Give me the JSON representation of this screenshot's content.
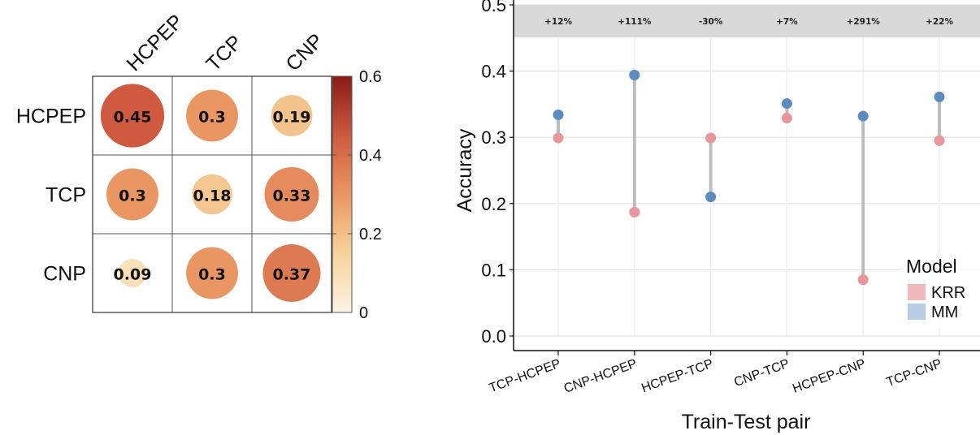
{
  "chart_data": [
    {
      "type": "heatmap",
      "rows": [
        "HCPEP",
        "TCP",
        "CNP"
      ],
      "columns": [
        "HCPEP",
        "TCP",
        "CNP"
      ],
      "values": [
        [
          0.45,
          0.3,
          0.19
        ],
        [
          0.3,
          0.18,
          0.33
        ],
        [
          0.09,
          0.3,
          0.37
        ]
      ],
      "value_labels": [
        [
          "0.45",
          "0.3",
          "0.19"
        ],
        [
          "0.3",
          "0.18",
          "0.33"
        ],
        [
          "0.09",
          "0.3",
          "0.37"
        ]
      ],
      "colorbar": {
        "range": [
          0,
          0.6
        ],
        "ticks": [
          "0",
          "0.2",
          "0.4",
          "0.6"
        ],
        "colors": [
          "#fdf3e4",
          "#f7d39c",
          "#e99663",
          "#cf5a3f",
          "#8b1a14"
        ]
      },
      "marker": "circle sized by value"
    },
    {
      "type": "scatter",
      "xlabel": "Train-Test pair",
      "ylabel": "Accuracy",
      "categories": [
        "TCP-HCPEP",
        "CNP-HCPEP",
        "HCPEP-TCP",
        "CNP-TCP",
        "HCPEP-CNP",
        "TCP-CNP"
      ],
      "y_ticks": [
        "0.0",
        "0.1",
        "0.2",
        "0.3",
        "0.4",
        "0.5"
      ],
      "ylim": [
        0,
        0.5
      ],
      "series": [
        {
          "name": "KRR",
          "color": "#e8969c",
          "values": [
            0.299,
            0.187,
            0.299,
            0.329,
            0.085,
            0.295
          ]
        },
        {
          "name": "MM",
          "color": "#5b8bbf",
          "values": [
            0.334,
            0.394,
            0.21,
            0.351,
            0.332,
            0.361
          ]
        }
      ],
      "connector_color": "#bdbdbd",
      "annotations": [
        "+12%",
        "+111%",
        "-30%",
        "+7%",
        "+291%",
        "+22%"
      ],
      "annotation_band_color": "#d9d9d9",
      "legend": {
        "title": "Model",
        "items": [
          {
            "label": "KRR",
            "color": "#f2b8bc"
          },
          {
            "label": "MM",
            "color": "#b8cde6"
          }
        ],
        "placement": "right"
      },
      "grid": true
    }
  ]
}
